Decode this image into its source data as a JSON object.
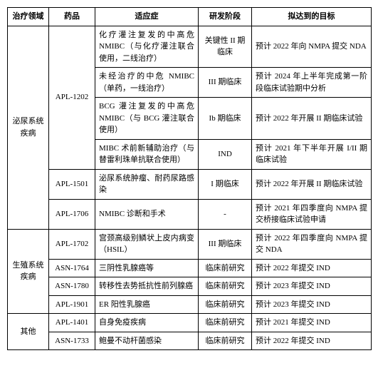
{
  "headers": {
    "domain": "治疗领域",
    "drug": "药品",
    "indication": "适应症",
    "stage": "研发阶段",
    "target": "拟达到的目标"
  },
  "rows": [
    {
      "domain": "泌尿系统疾病",
      "domain_rowspan": 6,
      "drug": "APL-1202",
      "drug_rowspan": 4,
      "indication": "化疗灌注复发的中高危 NMIBC（与化疗灌注联合使用，二线治疗）",
      "stage": "关键性 II 期临床",
      "target": "预计 2022 年向 NMPA 提交 NDA"
    },
    {
      "indication": "未经治疗的中危 NMIBC（单药，一线治疗）",
      "stage": "III 期临床",
      "target": "预计 2024 年上半年完成第一阶段临床试验期中分析"
    },
    {
      "indication": "BCG 灌注复发的中高危 NMIBC（与 BCG 灌注联合使用）",
      "stage": "Ib 期临床",
      "target": "预计 2022 年开展 II 期临床试验"
    },
    {
      "indication": "MIBC 术前新辅助治疗（与替雷利珠单抗联合使用）",
      "stage": "IND",
      "target": "预计 2021 年下半年开展 I/II 期临床试验"
    },
    {
      "drug": "APL-1501",
      "drug_rowspan": 1,
      "indication": "泌尿系统肿瘤、耐药尿路感染",
      "stage": "I 期临床",
      "target": "预计 2022 年开展 II 期临床试验"
    },
    {
      "drug": "APL-1706",
      "drug_rowspan": 1,
      "indication": "NMIBC 诊断和手术",
      "stage": "-",
      "target": "预计 2021 年四季度向 NMPA 提交桥接临床试验申请"
    },
    {
      "domain": "生殖系统疾病",
      "domain_rowspan": 4,
      "drug": "APL-1702",
      "drug_rowspan": 1,
      "indication": "宫颈高级别鳞状上皮内病变（HSIL）",
      "stage": "III 期临床",
      "target": "预计 2022 年四季度向 NMPA 提 交 NDA"
    },
    {
      "drug": "ASN-1764",
      "drug_rowspan": 1,
      "indication": "三阴性乳腺癌等",
      "stage": "临床前研究",
      "target": "预计 2022 年提交 IND"
    },
    {
      "drug": "ASN-1780",
      "drug_rowspan": 1,
      "indication": "转移性去势抵抗性前列腺癌",
      "stage": "临床前研究",
      "target": "预计 2023 年提交 IND"
    },
    {
      "drug": "APL-1901",
      "drug_rowspan": 1,
      "indication": "ER 阳性乳腺癌",
      "stage": "临床前研究",
      "target": "预计 2023 年提交 IND"
    },
    {
      "domain": "其他",
      "domain_rowspan": 2,
      "drug": "APL-1401",
      "drug_rowspan": 1,
      "indication": "自身免疫疾病",
      "stage": "临床前研究",
      "target": "预计 2021 年提交 IND"
    },
    {
      "drug": "ASN-1733",
      "drug_rowspan": 1,
      "indication": "鲍曼不动杆菌感染",
      "stage": "临床前研究",
      "target": "预计 2022 年提交 IND"
    }
  ]
}
